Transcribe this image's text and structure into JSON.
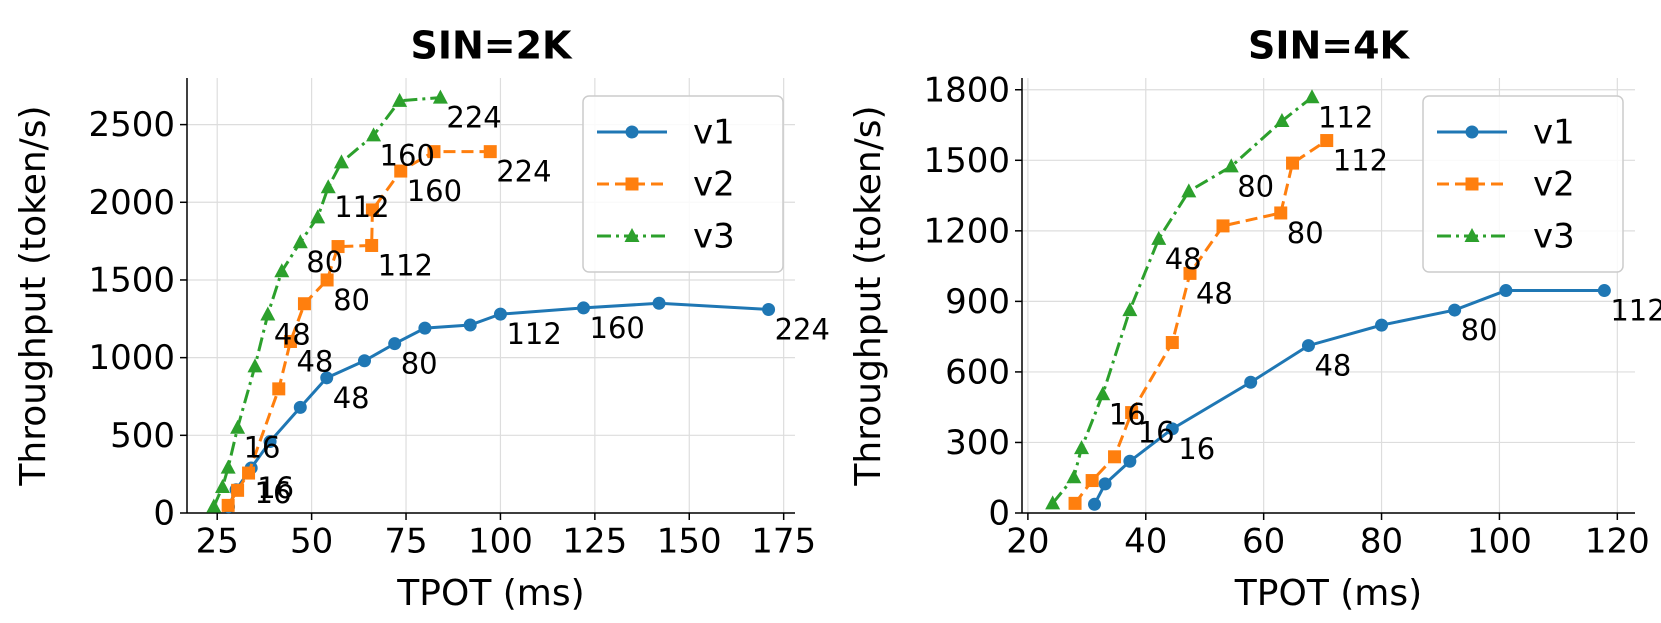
{
  "chart_data": [
    {
      "type": "line",
      "title": "SIN=2K",
      "x_label": "TPOT (ms)",
      "y_label": "Throughput (token/s)",
      "xlim": [
        17,
        178
      ],
      "xticks": [
        25,
        50,
        75,
        100,
        125,
        150,
        175
      ],
      "ylim": [
        0,
        2800
      ],
      "yticks": [
        0,
        500,
        1000,
        1500,
        2000,
        2500
      ],
      "grid": true,
      "legend": "upper right",
      "series": [
        {
          "name": "v1",
          "color": "#1f77b4",
          "marker": "circle",
          "linestyle": "solid",
          "x": [
            28,
            30,
            34,
            39,
            47,
            54,
            64,
            72,
            80,
            92,
            100,
            122,
            142,
            171
          ],
          "values": [
            40,
            150,
            290,
            460,
            680,
            870,
            980,
            1090,
            1190,
            1210,
            1280,
            1320,
            1350,
            1310
          ],
          "point_labels": [
            null,
            null,
            "16",
            null,
            null,
            "48",
            null,
            "80",
            null,
            null,
            "112",
            "160",
            null,
            "224"
          ]
        },
        {
          "name": "v2",
          "color": "#ff7f0e",
          "marker": "square",
          "linestyle": "dashed",
          "x": [
            27.9,
            30.4,
            33.3,
            41.3,
            44.4,
            48.1,
            54.1,
            57,
            65.9,
            66.1,
            73.6,
            82.4,
            97.3
          ],
          "values": [
            49,
            146,
            257,
            799,
            1104,
            1347,
            1500,
            1715,
            1722,
            1951,
            2201,
            2326,
            2326
          ],
          "point_labels": [
            null,
            null,
            "16",
            null,
            "48",
            null,
            "80",
            null,
            "112",
            null,
            "160",
            null,
            "224"
          ]
        },
        {
          "name": "v3",
          "color": "#2ca02c",
          "marker": "triangle",
          "linestyle": "dashdot",
          "x": [
            24.1,
            26.4,
            27.9,
            30.4,
            35,
            38.4,
            42.1,
            47,
            51.6,
            54.4,
            57.9,
            66.4,
            73.3,
            84.1
          ],
          "values": [
            42,
            167,
            292,
            549,
            944,
            1278,
            1556,
            1743,
            1903,
            2097,
            2257,
            2431,
            2653,
            2674
          ],
          "point_labels": [
            null,
            null,
            null,
            "16",
            null,
            "48",
            null,
            "80",
            null,
            "112",
            null,
            "160",
            null,
            "224"
          ]
        }
      ]
    },
    {
      "type": "line",
      "title": "SIN=4K",
      "x_label": "TPOT (ms)",
      "y_label": "Throughput (token/s)",
      "xlim": [
        19,
        123
      ],
      "xticks": [
        20,
        40,
        60,
        80,
        100,
        120
      ],
      "ylim": [
        0,
        1850
      ],
      "yticks": [
        0,
        300,
        600,
        900,
        1200,
        1500,
        1800
      ],
      "grid": true,
      "legend": "upper right",
      "series": [
        {
          "name": "v1",
          "color": "#1f77b4",
          "marker": "circle",
          "linestyle": "solid",
          "x": [
            31.3,
            33.1,
            37.3,
            44.5,
            57.8,
            67.6,
            80,
            92.4,
            101.1,
            117.8
          ],
          "values": [
            37,
            124,
            220,
            358,
            556,
            712,
            799,
            863,
            946,
            946
          ],
          "point_labels": [
            null,
            null,
            null,
            "16",
            null,
            "48",
            null,
            "80",
            null,
            "112"
          ]
        },
        {
          "name": "v2",
          "color": "#ff7f0e",
          "marker": "square",
          "linestyle": "dashed",
          "x": [
            28,
            30.9,
            34.7,
            37.6,
            44.5,
            47.5,
            53.1,
            62.9,
            64.9,
            70.7
          ],
          "values": [
            41,
            138,
            239,
            427,
            725,
            1019,
            1221,
            1276,
            1488,
            1584
          ],
          "point_labels": [
            null,
            null,
            null,
            "16",
            null,
            "48",
            null,
            "80",
            null,
            "112"
          ]
        },
        {
          "name": "v3",
          "color": "#2ca02c",
          "marker": "triangle",
          "linestyle": "dashdot",
          "x": [
            24.2,
            27.8,
            29.1,
            32.7,
            37.3,
            42.2,
            47.3,
            54.5,
            63.1,
            68.2
          ],
          "values": [
            41,
            152,
            276,
            505,
            863,
            1166,
            1368,
            1474,
            1667,
            1768
          ],
          "point_labels": [
            null,
            null,
            null,
            "16",
            null,
            "48",
            null,
            "80",
            null,
            "112"
          ]
        }
      ]
    }
  ]
}
